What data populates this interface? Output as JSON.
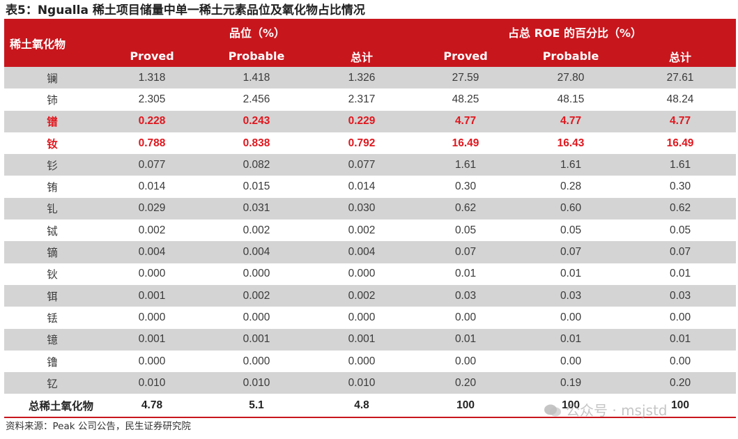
{
  "title": "表5：Ngualla 稀土项目储量中单一稀土元素品位及氧化物占比情况",
  "header": {
    "row_label": "稀土氧化物",
    "group1": "品位（%）",
    "group2": "占总 ROE 的百分比（%）",
    "sub": [
      "Proved",
      "Probable",
      "总计",
      "Proved",
      "Probable",
      "总计"
    ]
  },
  "rows": [
    {
      "name": "镧",
      "values": [
        "1.318",
        "1.418",
        "1.326",
        "27.59",
        "27.80",
        "27.61"
      ]
    },
    {
      "name": "铈",
      "values": [
        "2.305",
        "2.456",
        "2.317",
        "48.25",
        "48.15",
        "48.24"
      ]
    },
    {
      "name": "镨",
      "values": [
        "0.228",
        "0.243",
        "0.229",
        "4.77",
        "4.77",
        "4.77"
      ]
    },
    {
      "name": "钕",
      "values": [
        "0.788",
        "0.838",
        "0.792",
        "16.49",
        "16.43",
        "16.49"
      ]
    },
    {
      "name": "钐",
      "values": [
        "0.077",
        "0.082",
        "0.077",
        "1.61",
        "1.61",
        "1.61"
      ]
    },
    {
      "name": "铕",
      "values": [
        "0.014",
        "0.015",
        "0.014",
        "0.30",
        "0.28",
        "0.30"
      ]
    },
    {
      "name": "钆",
      "values": [
        "0.029",
        "0.031",
        "0.030",
        "0.62",
        "0.60",
        "0.62"
      ]
    },
    {
      "name": "铽",
      "values": [
        "0.002",
        "0.002",
        "0.002",
        "0.05",
        "0.05",
        "0.05"
      ]
    },
    {
      "name": "镝",
      "values": [
        "0.004",
        "0.004",
        "0.004",
        "0.07",
        "0.07",
        "0.07"
      ]
    },
    {
      "name": "钬",
      "values": [
        "0.000",
        "0.000",
        "0.000",
        "0.01",
        "0.01",
        "0.01"
      ]
    },
    {
      "name": "铒",
      "values": [
        "0.001",
        "0.002",
        "0.002",
        "0.03",
        "0.03",
        "0.03"
      ]
    },
    {
      "name": "铥",
      "values": [
        "0.000",
        "0.000",
        "0.000",
        "0.00",
        "0.00",
        "0.00"
      ]
    },
    {
      "name": "镱",
      "values": [
        "0.001",
        "0.001",
        "0.001",
        "0.01",
        "0.01",
        "0.01"
      ]
    },
    {
      "name": "镥",
      "values": [
        "0.000",
        "0.000",
        "0.000",
        "0.00",
        "0.00",
        "0.00"
      ]
    },
    {
      "name": "钇",
      "values": [
        "0.010",
        "0.010",
        "0.010",
        "0.20",
        "0.19",
        "0.20"
      ]
    }
  ],
  "total": {
    "name": "总稀土氧化物",
    "values": [
      "4.78",
      "5.1",
      "4.8",
      "100",
      "100",
      "100"
    ]
  },
  "source": "资料来源：Peak 公司公告，民生证券研究院",
  "watermark": "公众号 · msjstd",
  "colors": {
    "header_bg": "#c8161d",
    "highlight_text": "#e0161d",
    "stripe": "#d4d4d4"
  }
}
